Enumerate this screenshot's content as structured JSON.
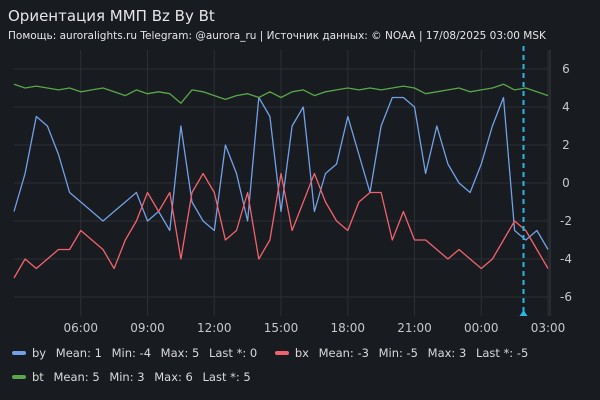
{
  "panel": {
    "title": "Ориентация ММП Bz By Bt",
    "subtitle": "Помощь: auroralights.ru Telegram: @aurora_ru | Источник данных:  © NOAA | 17/08/2025 03:00 MSK"
  },
  "chart_data": {
    "type": "line",
    "x_unit": "hours since 00:00",
    "x_ticks": [
      {
        "label": "06:00",
        "x": 6
      },
      {
        "label": "09:00",
        "x": 9
      },
      {
        "label": "12:00",
        "x": 12
      },
      {
        "label": "15:00",
        "x": 15
      },
      {
        "label": "18:00",
        "x": 18
      },
      {
        "label": "21:00",
        "x": 21
      },
      {
        "label": "00:00",
        "x": 24
      },
      {
        "label": "03:00",
        "x": 27
      }
    ],
    "xlim": [
      3,
      27
    ],
    "ylim": [
      -7,
      7
    ],
    "y_ticks": [
      6,
      4,
      2,
      0,
      -2,
      -4,
      -6
    ],
    "y_axis_side": "right",
    "grid": true,
    "legend_position": "bottom",
    "now_marker_x": 25.9,
    "series": [
      {
        "name": "by",
        "color": "#73a0e6",
        "stats": {
          "mean": "Mean: 1",
          "min": "Min: -4",
          "max": "Max: 5",
          "last": "Last *: 0"
        },
        "x": [
          3.0,
          3.5,
          4.0,
          4.5,
          5.0,
          5.5,
          6.0,
          6.5,
          7.0,
          7.5,
          8.0,
          8.5,
          9.0,
          9.5,
          10.0,
          10.5,
          11.0,
          11.5,
          12.0,
          12.5,
          13.0,
          13.5,
          14.0,
          14.5,
          15.0,
          15.5,
          16.0,
          16.5,
          17.0,
          17.5,
          18.0,
          18.5,
          19.0,
          19.5,
          20.0,
          20.5,
          21.0,
          21.5,
          22.0,
          22.5,
          23.0,
          23.5,
          24.0,
          24.5,
          25.0,
          25.5,
          26.0,
          26.5,
          27.0
        ],
        "y": [
          -1.5,
          0.5,
          3.5,
          3.0,
          1.5,
          -0.5,
          -1.0,
          -1.5,
          -2.0,
          -1.5,
          -1.0,
          -0.5,
          -2.0,
          -1.5,
          -2.5,
          3.0,
          -1.0,
          -2.0,
          -2.5,
          2.0,
          0.5,
          -2.0,
          4.5,
          3.5,
          -1.5,
          3.0,
          4.0,
          -1.5,
          0.5,
          1.0,
          3.5,
          1.5,
          -0.5,
          3.0,
          4.5,
          4.5,
          4.0,
          0.5,
          3.0,
          1.0,
          0.0,
          -0.5,
          1.0,
          3.0,
          4.5,
          -2.5,
          -3.0,
          -2.5,
          -3.5
        ]
      },
      {
        "name": "bx",
        "color": "#f2626e",
        "stats": {
          "mean": "Mean: -3",
          "min": "Min: -5",
          "max": "Max: 3",
          "last": "Last *: -5"
        },
        "x": [
          3.0,
          3.5,
          4.0,
          4.5,
          5.0,
          5.5,
          6.0,
          6.5,
          7.0,
          7.5,
          8.0,
          8.5,
          9.0,
          9.5,
          10.0,
          10.5,
          11.0,
          11.5,
          12.0,
          12.5,
          13.0,
          13.5,
          14.0,
          14.5,
          15.0,
          15.5,
          16.0,
          16.5,
          17.0,
          17.5,
          18.0,
          18.5,
          19.0,
          19.5,
          20.0,
          20.5,
          21.0,
          21.5,
          22.0,
          22.5,
          23.0,
          23.5,
          24.0,
          24.5,
          25.0,
          25.5,
          26.0,
          26.5,
          27.0
        ],
        "y": [
          -5.0,
          -4.0,
          -4.5,
          -4.0,
          -3.5,
          -3.5,
          -2.5,
          -3.0,
          -3.5,
          -4.5,
          -3.0,
          -2.0,
          -0.5,
          -1.5,
          -0.5,
          -4.0,
          -0.5,
          0.5,
          -0.5,
          -3.0,
          -2.5,
          -0.5,
          -4.0,
          -3.0,
          0.5,
          -2.5,
          -1.0,
          0.5,
          -1.0,
          -2.0,
          -2.5,
          -1.0,
          -0.5,
          -0.5,
          -3.0,
          -1.5,
          -3.0,
          -3.0,
          -3.5,
          -4.0,
          -3.5,
          -4.0,
          -4.5,
          -4.0,
          -3.0,
          -2.0,
          -2.5,
          -3.5,
          -4.5
        ]
      },
      {
        "name": "bt",
        "color": "#5aa64b",
        "stats": {
          "mean": "Mean: 5",
          "min": "Min: 3",
          "max": "Max: 6",
          "last": "Last *: 5"
        },
        "x": [
          3.0,
          3.5,
          4.0,
          4.5,
          5.0,
          5.5,
          6.0,
          6.5,
          7.0,
          7.5,
          8.0,
          8.5,
          9.0,
          9.5,
          10.0,
          10.5,
          11.0,
          11.5,
          12.0,
          12.5,
          13.0,
          13.5,
          14.0,
          14.5,
          15.0,
          15.5,
          16.0,
          16.5,
          17.0,
          17.5,
          18.0,
          18.5,
          19.0,
          19.5,
          20.0,
          20.5,
          21.0,
          21.5,
          22.0,
          22.5,
          23.0,
          23.5,
          24.0,
          24.5,
          25.0,
          25.5,
          26.0,
          26.5,
          27.0
        ],
        "y": [
          5.2,
          5.0,
          5.1,
          5.0,
          4.9,
          5.0,
          4.8,
          4.9,
          5.0,
          4.8,
          4.6,
          4.9,
          4.7,
          4.8,
          4.7,
          4.2,
          4.9,
          4.8,
          4.6,
          4.4,
          4.6,
          4.7,
          4.5,
          4.8,
          4.5,
          4.8,
          4.9,
          4.6,
          4.8,
          4.9,
          5.0,
          4.9,
          5.0,
          4.9,
          5.0,
          5.1,
          5.0,
          4.7,
          4.8,
          4.9,
          5.0,
          4.8,
          4.9,
          5.0,
          5.2,
          4.9,
          5.0,
          4.8,
          4.6
        ]
      }
    ]
  }
}
